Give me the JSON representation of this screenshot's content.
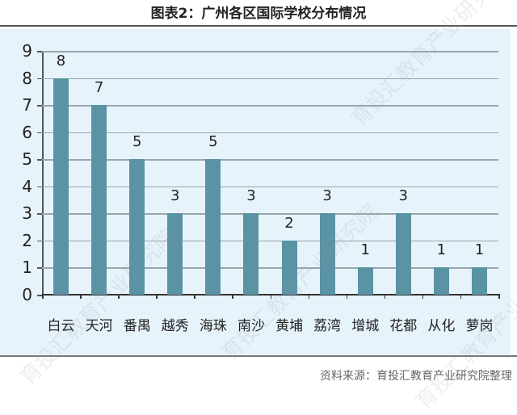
{
  "header": {
    "title": "图表2：广州各区国际学校分布情况"
  },
  "footer": {
    "source": "资料来源：育投汇教育产业研究院整理"
  },
  "watermark": {
    "text": "育投汇教育产业研究院"
  },
  "colors": {
    "bar": "#5a93a3",
    "panel_background": "#e7f3fb",
    "gridline": "#9aa6ad"
  },
  "chart_data": {
    "type": "bar",
    "title": "图表2：广州各区国际学校分布情况",
    "xlabel": "",
    "ylabel": "",
    "categories": [
      "白云",
      "天河",
      "番禺",
      "越秀",
      "海珠",
      "南沙",
      "黄埔",
      "荔湾",
      "增城",
      "花都",
      "从化",
      "萝岗"
    ],
    "values": [
      8,
      7,
      5,
      3,
      5,
      3,
      2,
      3,
      1,
      3,
      1,
      1
    ],
    "ylim": [
      0,
      9
    ],
    "yticks": [
      "0",
      "1",
      "2",
      "3",
      "4",
      "5",
      "6",
      "7",
      "8",
      "9"
    ],
    "grid": true,
    "legend": "none",
    "data_labels": true
  }
}
